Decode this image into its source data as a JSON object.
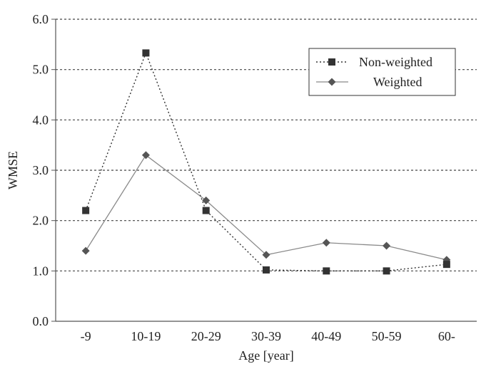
{
  "chart_data": {
    "type": "line",
    "title": "",
    "xlabel": "Age [year]",
    "ylabel": "WMSE",
    "categories": [
      "-9",
      "10-19",
      "20-29",
      "30-39",
      "40-49",
      "50-59",
      "60-"
    ],
    "ylim": [
      0.0,
      6.0
    ],
    "yticks": [
      "0.0",
      "1.0",
      "2.0",
      "3.0",
      "4.0",
      "5.0",
      "6.0"
    ],
    "grid": "horizontal dotted",
    "legend_position": "top-right",
    "series": [
      {
        "name": "Non-weighted",
        "marker": "square",
        "line_style": "dotted",
        "values": [
          2.2,
          5.33,
          2.2,
          1.02,
          1.0,
          1.0,
          1.13
        ]
      },
      {
        "name": "Weighted",
        "marker": "diamond",
        "line_style": "solid",
        "values": [
          1.4,
          3.3,
          2.4,
          1.32,
          1.56,
          1.5,
          1.22
        ]
      }
    ],
    "colors": {
      "series_line_nonweighted": "#333333",
      "series_line_weighted": "#8a8a8a",
      "marker_nonweighted": "#333333",
      "marker_weighted": "#555555",
      "axis": "#555555",
      "grid": "#444444"
    }
  }
}
